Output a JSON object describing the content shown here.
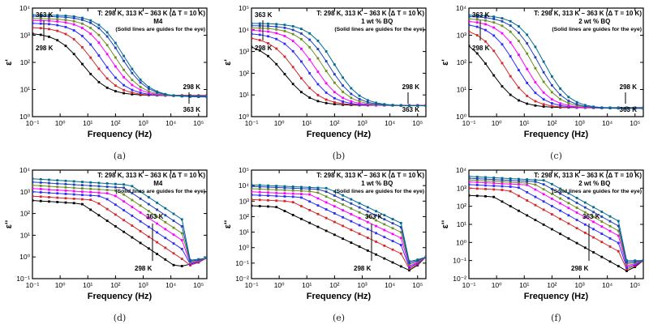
{
  "colors": {
    "series": [
      "#000000",
      "#d62728",
      "#2b2bff",
      "#ff00ff",
      "#6b8e23",
      "#1f3fbf",
      "#006b8f",
      "#00008b"
    ],
    "axis": "#000000"
  },
  "chart_data": [
    {
      "type": "line",
      "caption": "(a)",
      "quantity": "eps1",
      "title": "T: 298 K, 313 K – 363 K  (Δ T = 10 K)",
      "sample": "M4",
      "note": "(Solid lines are guides for the eye)",
      "xlabel": "Frequency (Hz)",
      "ylabel": "ε'",
      "xlim_log10": [
        -1,
        5.3
      ],
      "ylim_log10": [
        0,
        4
      ],
      "xticks": [
        "10⁻¹",
        "10⁰",
        "10¹",
        "10²",
        "10³",
        "10⁴",
        "10⁵"
      ],
      "yticks": [
        "10⁰",
        "10¹",
        "10²",
        "10³",
        "10⁴"
      ],
      "labels": {
        "hi_top": "363 K",
        "lo_top": "298 K",
        "hi_bottom": "298 K",
        "lo_bottom": "363 K"
      },
      "series_names": [
        "298 K",
        "313 K",
        "323 K",
        "333 K",
        "343 K",
        "353 K",
        "363 K"
      ],
      "model": {
        "lowF_log10": [
          3.1,
          3.3,
          3.45,
          3.55,
          3.62,
          3.7,
          3.75
        ],
        "highF_log10": [
          0.78,
          0.77,
          0.76,
          0.75,
          0.74,
          0.73,
          0.72
        ],
        "relax_log10f": [
          0.8,
          1.2,
          1.5,
          1.8,
          2.0,
          2.2,
          2.3
        ]
      }
    },
    {
      "type": "line",
      "caption": "(b)",
      "quantity": "eps1",
      "title": "T: 298 K, 313 K – 363 K  (Δ T = 10 K)",
      "sample": "1 wt % BQ",
      "note": "(Solid lines are guides for the eye)",
      "xlabel": "Frequency (Hz)",
      "ylabel": "ε'",
      "xlim_log10": [
        -1,
        5.3
      ],
      "ylim_log10": [
        0,
        5
      ],
      "xticks": [
        "10⁻¹",
        "10⁰",
        "10¹",
        "10²",
        "10³",
        "10⁴",
        "10⁵"
      ],
      "yticks": [
        "10⁰",
        "10¹",
        "10²",
        "10³",
        "10⁴",
        "10⁵"
      ],
      "labels": {
        "hi_top": "363 K",
        "lo_top": "298 K",
        "hi_bottom": "298 K",
        "lo_bottom": "363 K"
      },
      "series_names": [
        "298 K",
        "313 K",
        "323 K",
        "333 K",
        "343 K",
        "353 K",
        "363 K"
      ],
      "model": {
        "lowF_log10": [
          3.4,
          3.7,
          3.85,
          4.0,
          4.1,
          4.2,
          4.3
        ],
        "highF_log10": [
          0.52,
          0.52,
          0.51,
          0.51,
          0.5,
          0.5,
          0.5
        ],
        "relax_log10f": [
          0.2,
          0.6,
          1.0,
          1.3,
          1.6,
          1.8,
          2.0
        ]
      }
    },
    {
      "type": "line",
      "caption": "(c)",
      "quantity": "eps1",
      "title": "T: 298 K, 313 K – 363 K  (Δ T = 10 K)",
      "sample": "2 wt % BQ",
      "note": "(Solid lines are guides for the eye)",
      "xlabel": "Frequency (Hz)",
      "ylabel": "ε'",
      "xlim_log10": [
        -1,
        5.3
      ],
      "ylim_log10": [
        0,
        4
      ],
      "xticks": [
        "10⁻¹",
        "10⁰",
        "10¹",
        "10²",
        "10³",
        "10⁴",
        "10⁵"
      ],
      "yticks": [
        "10⁰",
        "10¹",
        "10²",
        "10³",
        "10⁴"
      ],
      "labels": {
        "hi_top": "363 K",
        "lo_top": "298 K",
        "hi_bottom": "298 K",
        "lo_bottom": "363 K"
      },
      "series_names": [
        "298 K",
        "313 K",
        "323 K",
        "333 K",
        "343 K",
        "353 K",
        "363 K"
      ],
      "model": {
        "lowF_log10": [
          3.0,
          3.3,
          3.45,
          3.55,
          3.62,
          3.7,
          3.75
        ],
        "highF_log10": [
          0.33,
          0.32,
          0.32,
          0.31,
          0.31,
          0.3,
          0.3
        ],
        "relax_log10f": [
          -0.2,
          0.3,
          0.7,
          1.0,
          1.3,
          1.5,
          1.7
        ]
      }
    },
    {
      "type": "line",
      "caption": "(d)",
      "quantity": "eps2",
      "title": "T: 298 K, 313 K – 363 K  (Δ T = 10 K)",
      "sample": "M4",
      "note": "(Solid lines are guides for the eye)",
      "xlabel": "Frequency (Hz)",
      "ylabel": "ε''",
      "xlim_log10": [
        -1,
        5.3
      ],
      "ylim_log10": [
        -1,
        4
      ],
      "xticks": [
        "10⁻¹",
        "10⁰",
        "10¹",
        "10²",
        "10³",
        "10⁴",
        "10⁵"
      ],
      "yticks": [
        "10⁻¹",
        "10⁰",
        "10¹",
        "10²",
        "10³",
        "10⁴"
      ],
      "labels": {
        "hi": "363 K",
        "lo": "298 K"
      },
      "series_names": [
        "298 K",
        "313 K",
        "323 K",
        "333 K",
        "343 K",
        "353 K",
        "363 K"
      ],
      "model": {
        "start_log10": [
          2.6,
          2.8,
          3.0,
          3.15,
          3.3,
          3.45,
          3.6
        ],
        "knee_log10f": [
          0.6,
          1.0,
          1.3,
          1.6,
          1.8,
          2.0,
          2.2
        ],
        "min_log10": [
          -0.45,
          -0.4,
          -0.35,
          -0.3,
          -0.25,
          -0.2,
          -0.15
        ],
        "end_log10": -0.05
      }
    },
    {
      "type": "line",
      "caption": "(e)",
      "quantity": "eps2",
      "title": "T: 298 K, 313 K – 363 K  (Δ T = 10 K)",
      "sample": "1 wt % BQ",
      "note": "(Solid lines are guides for the eye)",
      "xlabel": "Frequency (Hz)",
      "ylabel": "ε''",
      "xlim_log10": [
        -1,
        5.3
      ],
      "ylim_log10": [
        -2,
        5
      ],
      "xticks": [
        "10⁻¹",
        "10⁰",
        "10¹",
        "10²",
        "10³",
        "10⁴",
        "10⁵"
      ],
      "yticks": [
        "10⁻²",
        "10⁻¹",
        "10⁰",
        "10¹",
        "10²",
        "10³",
        "10⁴",
        "10⁵"
      ],
      "labels": {
        "hi": "363 K",
        "lo": "298 K"
      },
      "series_names": [
        "298 K",
        "313 K",
        "323 K",
        "333 K",
        "343 K",
        "353 K",
        "363 K"
      ],
      "model": {
        "start_log10": [
          2.7,
          3.1,
          3.4,
          3.6,
          3.8,
          3.95,
          4.05
        ],
        "knee_log10f": [
          -0.2,
          0.3,
          0.6,
          0.9,
          1.1,
          1.3,
          1.5
        ],
        "min_log10": [
          -1.5,
          -1.4,
          -1.3,
          -1.2,
          -1.1,
          -1.0,
          -0.9
        ],
        "end_log10": -0.6
      }
    },
    {
      "type": "line",
      "caption": "(f)",
      "quantity": "eps2",
      "title": "T: 298 K, 313 K – 363 K  (Δ T = 10 K)",
      "sample": "2 wt % BQ",
      "note": "(Solid lines are guides for the eye)",
      "xlabel": "Frequency (Hz)",
      "ylabel": "ε''",
      "xlim_log10": [
        -1,
        5.3
      ],
      "ylim_log10": [
        -2,
        4
      ],
      "xticks": [
        "10⁻¹",
        "10⁰",
        "10¹",
        "10²",
        "10³",
        "10⁴",
        "10⁵"
      ],
      "yticks": [
        "10⁻²",
        "10⁻¹",
        "10⁰",
        "10¹",
        "10²",
        "10³",
        "10⁴"
      ],
      "labels": {
        "hi": "363 K",
        "lo": "298 K"
      },
      "series_names": [
        "298 K",
        "313 K",
        "323 K",
        "333 K",
        "343 K",
        "353 K",
        "363 K"
      ],
      "model": {
        "start_log10": [
          2.6,
          3.0,
          3.2,
          3.35,
          3.45,
          3.55,
          3.65
        ],
        "knee_log10f": [
          -0.2,
          0.3,
          0.6,
          0.9,
          1.1,
          1.3,
          1.5
        ],
        "min_log10": [
          -1.6,
          -1.5,
          -1.4,
          -1.3,
          -1.2,
          -1.1,
          -1.0
        ],
        "end_log10": -1.0
      }
    }
  ]
}
